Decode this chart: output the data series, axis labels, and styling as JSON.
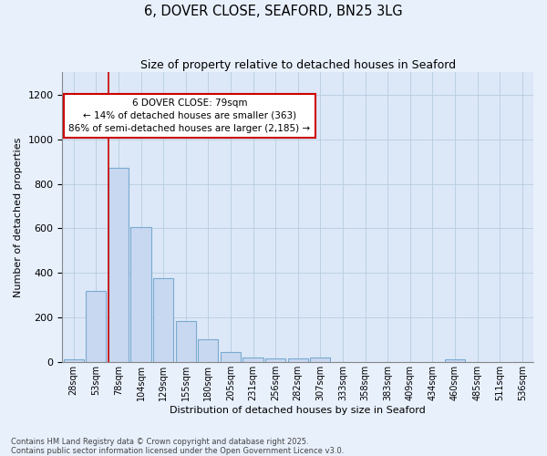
{
  "title": "6, DOVER CLOSE, SEAFORD, BN25 3LG",
  "subtitle": "Size of property relative to detached houses in Seaford",
  "xlabel": "Distribution of detached houses by size in Seaford",
  "ylabel": "Number of detached properties",
  "bar_color": "#c8d8f0",
  "bar_edge_color": "#7aaad0",
  "background_color": "#dce8f8",
  "fig_background_color": "#e8f0fc",
  "categories": [
    "28sqm",
    "53sqm",
    "78sqm",
    "104sqm",
    "129sqm",
    "155sqm",
    "180sqm",
    "205sqm",
    "231sqm",
    "256sqm",
    "282sqm",
    "307sqm",
    "333sqm",
    "358sqm",
    "383sqm",
    "409sqm",
    "434sqm",
    "460sqm",
    "485sqm",
    "511sqm",
    "536sqm"
  ],
  "values": [
    12,
    320,
    870,
    605,
    378,
    185,
    105,
    45,
    22,
    18,
    18,
    20,
    0,
    0,
    0,
    0,
    0,
    12,
    0,
    0,
    0
  ],
  "ylim": [
    0,
    1300
  ],
  "yticks": [
    0,
    200,
    400,
    600,
    800,
    1000,
    1200
  ],
  "property_line_bar_index": 2,
  "annotation_text": "6 DOVER CLOSE: 79sqm\n← 14% of detached houses are smaller (363)\n86% of semi-detached houses are larger (2,185) →",
  "red_line_color": "#cc0000",
  "annotation_box_edge_color": "#cc0000",
  "footer_text": "Contains HM Land Registry data © Crown copyright and database right 2025.\nContains public sector information licensed under the Open Government Licence v3.0.",
  "grid_color": "#b8cce0"
}
